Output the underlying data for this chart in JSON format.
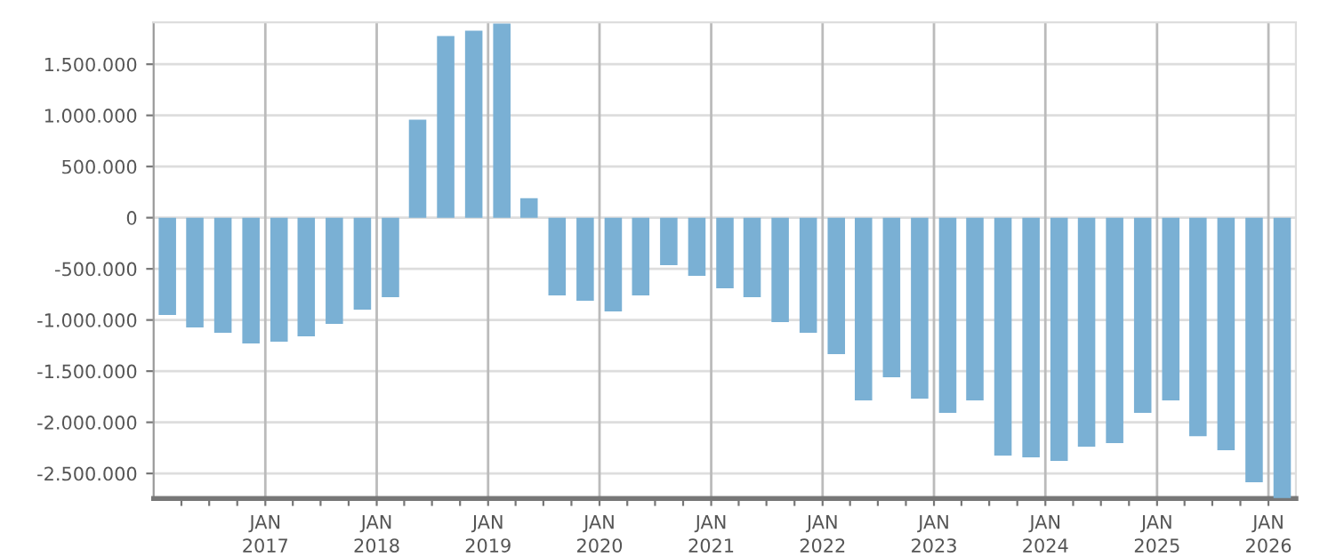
{
  "chart_data": {
    "type": "bar",
    "color": "#7ab0d4",
    "x": [
      "2016-02-15",
      "2016-05-15",
      "2016-08-15",
      "2016-11-15",
      "2017-02-15",
      "2017-05-15",
      "2017-08-15",
      "2017-11-15",
      "2018-02-15",
      "2018-05-15",
      "2018-08-15",
      "2018-11-15",
      "2019-02-15",
      "2019-05-15",
      "2019-08-15",
      "2019-11-15",
      "2020-02-15",
      "2020-05-15",
      "2020-08-15",
      "2020-11-15",
      "2021-02-15",
      "2021-05-15",
      "2021-08-15",
      "2021-11-15",
      "2022-02-15",
      "2022-05-15",
      "2022-08-15",
      "2022-11-15",
      "2023-02-15",
      "2023-05-15",
      "2023-08-15",
      "2023-11-15",
      "2024-02-15",
      "2024-05-15",
      "2024-08-15",
      "2024-11-15",
      "2025-02-15",
      "2025-05-15",
      "2025-08-15",
      "2025-11-15",
      "2026-02-15"
    ],
    "values": [
      -951000,
      -1073000,
      -1125000,
      -1230000,
      -1212000,
      -1160000,
      -1038000,
      -899000,
      -777000,
      957000,
      1775000,
      1827000,
      1897000,
      191000,
      -760000,
      -812000,
      -916000,
      -760000,
      -464000,
      -568000,
      -690000,
      -777000,
      -1021000,
      -1125000,
      -1334000,
      -1787000,
      -1560000,
      -1769000,
      -1908000,
      -1787000,
      -2326000,
      -2343000,
      -2378000,
      -2239000,
      -2204000,
      -1908000,
      -1787000,
      -2135000,
      -2274000,
      -2587000,
      -2740000
    ],
    "xlim": [
      "2016-01-01",
      "2026-04-01"
    ],
    "xticks": [
      {
        "value": "2016-04-01",
        "label": null
      },
      {
        "value": "2016-07-01",
        "label": null
      },
      {
        "value": "2016-10-01",
        "label": null
      },
      {
        "value": "2017-01-01",
        "label": "JAN\n2017"
      },
      {
        "value": "2017-04-01",
        "label": null
      },
      {
        "value": "2017-07-01",
        "label": null
      },
      {
        "value": "2017-10-01",
        "label": null
      },
      {
        "value": "2018-01-01",
        "label": "JAN\n2018"
      },
      {
        "value": "2018-04-01",
        "label": null
      },
      {
        "value": "2018-07-01",
        "label": null
      },
      {
        "value": "2018-10-01",
        "label": null
      },
      {
        "value": "2019-01-01",
        "label": "JAN\n2019"
      },
      {
        "value": "2019-04-01",
        "label": null
      },
      {
        "value": "2019-07-01",
        "label": null
      },
      {
        "value": "2019-10-01",
        "label": null
      },
      {
        "value": "2020-01-01",
        "label": "JAN\n2020"
      },
      {
        "value": "2020-04-01",
        "label": null
      },
      {
        "value": "2020-07-01",
        "label": null
      },
      {
        "value": "2020-10-01",
        "label": null
      },
      {
        "value": "2021-01-01",
        "label": "JAN\n2021"
      },
      {
        "value": "2021-04-01",
        "label": null
      },
      {
        "value": "2021-07-01",
        "label": null
      },
      {
        "value": "2021-10-01",
        "label": null
      },
      {
        "value": "2022-01-01",
        "label": "JAN\n2022"
      },
      {
        "value": "2022-04-01",
        "label": null
      },
      {
        "value": "2022-07-01",
        "label": null
      },
      {
        "value": "2022-10-01",
        "label": null
      },
      {
        "value": "2023-01-01",
        "label": "JAN\n2023"
      },
      {
        "value": "2023-04-01",
        "label": null
      },
      {
        "value": "2023-07-01",
        "label": null
      },
      {
        "value": "2023-10-01",
        "label": null
      },
      {
        "value": "2024-01-01",
        "label": "JAN\n2024"
      },
      {
        "value": "2024-04-01",
        "label": null
      },
      {
        "value": "2024-07-01",
        "label": null
      },
      {
        "value": "2024-10-01",
        "label": null
      },
      {
        "value": "2025-01-01",
        "label": "JAN\n2025"
      },
      {
        "value": "2025-04-01",
        "label": null
      },
      {
        "value": "2025-07-01",
        "label": null
      },
      {
        "value": "2025-10-01",
        "label": null
      },
      {
        "value": "2026-01-01",
        "label": "JAN\n2026"
      }
    ],
    "ylim": [
      -2745000,
      1910000
    ],
    "yticks": [
      {
        "value": -2500000,
        "label": "-2.500.000"
      },
      {
        "value": -2000000,
        "label": "-2.000.000"
      },
      {
        "value": -1500000,
        "label": "-1.500.000"
      },
      {
        "value": -1000000,
        "label": "-1.000.000"
      },
      {
        "value": -500000,
        "label": "-500.000"
      },
      {
        "value": 0,
        "label": "0"
      },
      {
        "value": 500000,
        "label": "500.000"
      },
      {
        "value": 1000000,
        "label": "1.000.000"
      },
      {
        "value": 1500000,
        "label": "1.500.000"
      }
    ],
    "grid": true
  }
}
